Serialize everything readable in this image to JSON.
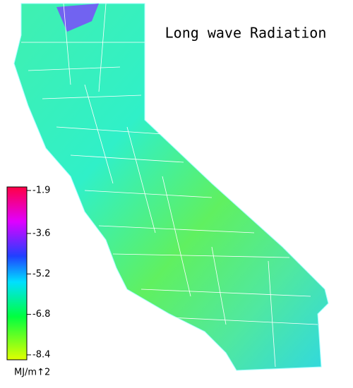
{
  "map": {
    "title": "Long wave Radiation",
    "legend": {
      "ticks": [
        -1.9,
        -3.6,
        -5.2,
        -6.8,
        -8.4
      ],
      "unit": "MJ/m↑2"
    }
  }
}
